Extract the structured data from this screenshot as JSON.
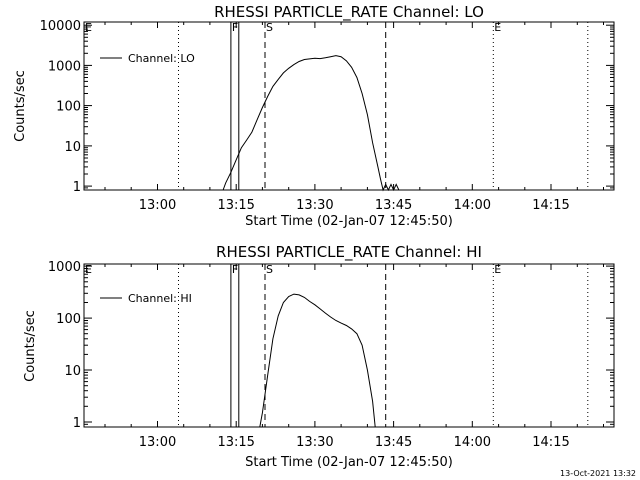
{
  "footer": {
    "timestamp": "13-Oct-2021 13:32"
  },
  "chart_data": [
    {
      "type": "line",
      "title": "RHESSI PARTICLE_RATE Channel: LO",
      "xlabel": "Start Time (02-Jan-07 12:45:50)",
      "ylabel": "Counts/sec",
      "yscale": "log",
      "xlim": [
        "12:46",
        "14:27"
      ],
      "ylim": [
        0.8,
        12000
      ],
      "x_ticks": [
        "13:00",
        "13:15",
        "13:30",
        "13:45",
        "14:00",
        "14:15"
      ],
      "y_ticks": [
        {
          "value": 1,
          "label": "1"
        },
        {
          "value": 10,
          "label": "10"
        },
        {
          "value": 100,
          "label": "100"
        },
        {
          "value": 1000,
          "label": "1000"
        },
        {
          "value": 10000,
          "label": "10000"
        }
      ],
      "legend": {
        "label": "Channel: LO",
        "position": "top-left"
      },
      "markers": [
        {
          "x": "12:46",
          "label": "E",
          "style": "dotted"
        },
        {
          "x": "13:04",
          "label": "",
          "style": "dotted"
        },
        {
          "x": "13:14",
          "label": "F",
          "style": "solid"
        },
        {
          "x": "13:15.5",
          "label": "",
          "style": "solid"
        },
        {
          "x": "13:20.5",
          "label": "S",
          "style": "dashed"
        },
        {
          "x": "13:43.5",
          "label": "",
          "style": "dashed"
        },
        {
          "x": "14:04",
          "label": "E",
          "style": "dotted"
        },
        {
          "x": "14:22",
          "label": "",
          "style": "dotted"
        }
      ],
      "series": [
        {
          "values": [
            [
              "13:12.5",
              0.8
            ],
            [
              "13:13",
              1.2
            ],
            [
              "13:14",
              2.2
            ],
            [
              "13:15",
              4.5
            ],
            [
              "13:16",
              9
            ],
            [
              "13:17",
              14
            ],
            [
              "13:18",
              22
            ],
            [
              "13:19",
              45
            ],
            [
              "13:20",
              90
            ],
            [
              "13:21",
              170
            ],
            [
              "13:22",
              300
            ],
            [
              "13:23",
              450
            ],
            [
              "13:24",
              650
            ],
            [
              "13:25",
              850
            ],
            [
              "13:26",
              1050
            ],
            [
              "13:27",
              1250
            ],
            [
              "13:28",
              1400
            ],
            [
              "13:29",
              1450
            ],
            [
              "13:30",
              1500
            ],
            [
              "13:31",
              1480
            ],
            [
              "13:32",
              1550
            ],
            [
              "13:33",
              1650
            ],
            [
              "13:34",
              1750
            ],
            [
              "13:35",
              1650
            ],
            [
              "13:36",
              1300
            ],
            [
              "13:37",
              900
            ],
            [
              "13:38",
              500
            ],
            [
              "13:39",
              200
            ],
            [
              "13:40",
              60
            ],
            [
              "13:41",
              12
            ],
            [
              "13:42",
              3
            ],
            [
              "13:42.5",
              1.5
            ],
            [
              "13:43",
              0.8
            ],
            [
              "13:43.5",
              1.1
            ],
            [
              "13:44",
              0.8
            ],
            [
              "13:44.5",
              1.1
            ],
            [
              "13:45",
              0.8
            ],
            [
              "13:45.5",
              1.1
            ],
            [
              "13:46",
              0.8
            ]
          ]
        }
      ]
    },
    {
      "type": "line",
      "title": "RHESSI PARTICLE_RATE Channel: HI",
      "xlabel": "Start Time (02-Jan-07 12:45:50)",
      "ylabel": "Counts/sec",
      "yscale": "log",
      "xlim": [
        "12:46",
        "14:27"
      ],
      "ylim": [
        0.8,
        1100
      ],
      "x_ticks": [
        "13:00",
        "13:15",
        "13:30",
        "13:45",
        "14:00",
        "14:15"
      ],
      "y_ticks": [
        {
          "value": 1,
          "label": "1"
        },
        {
          "value": 10,
          "label": "10"
        },
        {
          "value": 100,
          "label": "100"
        },
        {
          "value": 1000,
          "label": "1000"
        }
      ],
      "legend": {
        "label": "Channel: HI",
        "position": "top-left"
      },
      "markers": [
        {
          "x": "12:46",
          "label": "E",
          "style": "dotted"
        },
        {
          "x": "13:04",
          "label": "",
          "style": "dotted"
        },
        {
          "x": "13:14",
          "label": "F",
          "style": "solid"
        },
        {
          "x": "13:15.5",
          "label": "",
          "style": "solid"
        },
        {
          "x": "13:20.5",
          "label": "S",
          "style": "dashed"
        },
        {
          "x": "13:43.5",
          "label": "",
          "style": "dashed"
        },
        {
          "x": "14:04",
          "label": "E",
          "style": "dotted"
        },
        {
          "x": "14:22",
          "label": "",
          "style": "dotted"
        }
      ],
      "series": [
        {
          "values": [
            [
              "13:19.5",
              0.8
            ],
            [
              "13:20",
              1.5
            ],
            [
              "13:21",
              8
            ],
            [
              "13:22",
              40
            ],
            [
              "13:23",
              110
            ],
            [
              "13:24",
              200
            ],
            [
              "13:25",
              260
            ],
            [
              "13:26",
              290
            ],
            [
              "13:27",
              280
            ],
            [
              "13:28",
              250
            ],
            [
              "13:29",
              210
            ],
            [
              "13:30",
              180
            ],
            [
              "13:31",
              150
            ],
            [
              "13:32",
              125
            ],
            [
              "13:33",
              105
            ],
            [
              "13:34",
              90
            ],
            [
              "13:35",
              80
            ],
            [
              "13:36",
              72
            ],
            [
              "13:37",
              62
            ],
            [
              "13:38",
              50
            ],
            [
              "13:39",
              30
            ],
            [
              "13:40",
              10
            ],
            [
              "13:41",
              2.5
            ],
            [
              "13:41.5",
              0.8
            ]
          ]
        }
      ]
    }
  ]
}
